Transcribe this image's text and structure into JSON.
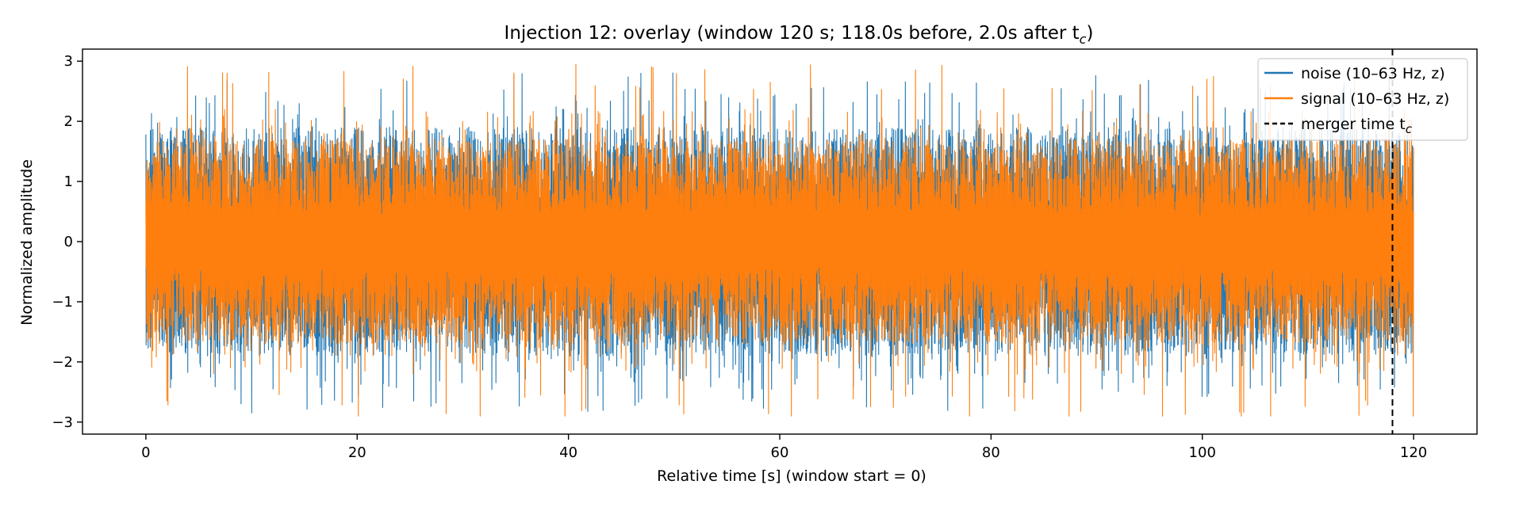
{
  "chart_data": {
    "type": "line",
    "title": "Injection 12: overlay (window 120 s; 118.0s before, 2.0s after t",
    "title_subscript": "c",
    "title_suffix": ")",
    "xlabel": "Relative time [s] (window start = 0)",
    "ylabel": "Normalized amplitude",
    "xlim": [
      -6,
      126
    ],
    "ylim": [
      -3.2,
      3.2
    ],
    "xticks": [
      0,
      20,
      40,
      60,
      80,
      100,
      120
    ],
    "xtick_labels": [
      "0",
      "20",
      "40",
      "60",
      "80",
      "100",
      "120"
    ],
    "yticks": [
      -3,
      -2,
      -1,
      0,
      1,
      2,
      3
    ],
    "ytick_labels": [
      "−3",
      "−2",
      "−1",
      "0",
      "1",
      "2",
      "3"
    ],
    "grid": false,
    "legend_position": "top-right",
    "series": [
      {
        "name": "noise (10–63 Hz, z)",
        "color": "#1f77b4",
        "x_range": [
          0,
          120
        ],
        "typical_envelope": [
          -1.9,
          1.9
        ],
        "peak_envelope": [
          -2.95,
          2.85
        ]
      },
      {
        "name": "signal (10–63 Hz, z)",
        "color": "#ff7f0e",
        "x_range": [
          0,
          120
        ],
        "typical_envelope": [
          -1.7,
          1.7
        ],
        "peak_envelope": [
          -2.9,
          2.95
        ]
      }
    ],
    "vline": {
      "name": "merger time t",
      "name_subscript": "c",
      "x": 118.0,
      "style": "dashed",
      "color": "#000000"
    }
  }
}
